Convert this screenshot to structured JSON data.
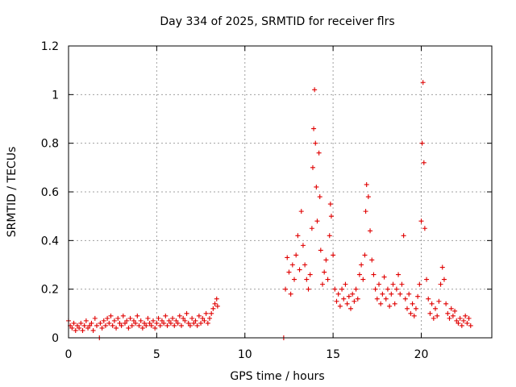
{
  "chart_data": {
    "type": "scatter",
    "title": "Day 334 of 2025, SRMTID for receiver flrs",
    "xlabel": "GPS time / hours",
    "ylabel": "SRMTID / TECUs",
    "xlim": [
      0,
      24
    ],
    "ylim": [
      0,
      1.2
    ],
    "xticks": [
      0,
      5,
      10,
      15,
      20
    ],
    "xtick_labels": [
      "0",
      "5",
      "10",
      "15",
      "20"
    ],
    "yticks": [
      0,
      0.2,
      0.4,
      0.6,
      0.8,
      1.0,
      1.2
    ],
    "ytick_labels": [
      "0",
      "0.2",
      "0.4",
      "0.6",
      "0.8",
      "1",
      "1.2"
    ],
    "grid": true,
    "marker": "plus",
    "color": "#e00000",
    "series": [
      {
        "name": "SRMTID",
        "points": [
          [
            0.0,
            0.07
          ],
          [
            0.1,
            0.05
          ],
          [
            0.2,
            0.04
          ],
          [
            0.3,
            0.06
          ],
          [
            0.4,
            0.03
          ],
          [
            0.5,
            0.05
          ],
          [
            0.6,
            0.04
          ],
          [
            0.7,
            0.06
          ],
          [
            0.8,
            0.03
          ],
          [
            0.9,
            0.05
          ],
          [
            1.0,
            0.07
          ],
          [
            1.1,
            0.04
          ],
          [
            1.2,
            0.05
          ],
          [
            1.3,
            0.06
          ],
          [
            1.4,
            0.03
          ],
          [
            1.5,
            0.08
          ],
          [
            1.6,
            0.05
          ],
          [
            1.75,
            0.0
          ],
          [
            1.8,
            0.06
          ],
          [
            1.9,
            0.04
          ],
          [
            2.0,
            0.07
          ],
          [
            2.1,
            0.05
          ],
          [
            2.2,
            0.08
          ],
          [
            2.3,
            0.06
          ],
          [
            2.4,
            0.09
          ],
          [
            2.5,
            0.05
          ],
          [
            2.6,
            0.07
          ],
          [
            2.7,
            0.04
          ],
          [
            2.8,
            0.08
          ],
          [
            2.9,
            0.06
          ],
          [
            3.0,
            0.05
          ],
          [
            3.1,
            0.09
          ],
          [
            3.2,
            0.06
          ],
          [
            3.3,
            0.07
          ],
          [
            3.4,
            0.04
          ],
          [
            3.5,
            0.08
          ],
          [
            3.6,
            0.05
          ],
          [
            3.7,
            0.07
          ],
          [
            3.8,
            0.06
          ],
          [
            3.9,
            0.09
          ],
          [
            4.0,
            0.05
          ],
          [
            4.1,
            0.07
          ],
          [
            4.2,
            0.04
          ],
          [
            4.3,
            0.06
          ],
          [
            4.4,
            0.05
          ],
          [
            4.5,
            0.08
          ],
          [
            4.6,
            0.06
          ],
          [
            4.7,
            0.05
          ],
          [
            4.8,
            0.07
          ],
          [
            4.9,
            0.04
          ],
          [
            5.0,
            0.06
          ],
          [
            5.1,
            0.08
          ],
          [
            5.2,
            0.05
          ],
          [
            5.3,
            0.07
          ],
          [
            5.4,
            0.06
          ],
          [
            5.5,
            0.09
          ],
          [
            5.6,
            0.05
          ],
          [
            5.7,
            0.07
          ],
          [
            5.8,
            0.06
          ],
          [
            5.9,
            0.08
          ],
          [
            6.0,
            0.05
          ],
          [
            6.1,
            0.07
          ],
          [
            6.2,
            0.06
          ],
          [
            6.3,
            0.09
          ],
          [
            6.4,
            0.05
          ],
          [
            6.5,
            0.08
          ],
          [
            6.6,
            0.07
          ],
          [
            6.7,
            0.1
          ],
          [
            6.8,
            0.06
          ],
          [
            6.9,
            0.05
          ],
          [
            7.0,
            0.08
          ],
          [
            7.1,
            0.06
          ],
          [
            7.2,
            0.07
          ],
          [
            7.3,
            0.05
          ],
          [
            7.4,
            0.09
          ],
          [
            7.5,
            0.06
          ],
          [
            7.6,
            0.08
          ],
          [
            7.7,
            0.07
          ],
          [
            7.8,
            0.1
          ],
          [
            7.9,
            0.06
          ],
          [
            8.0,
            0.08
          ],
          [
            8.1,
            0.1
          ],
          [
            8.2,
            0.12
          ],
          [
            8.3,
            0.14
          ],
          [
            8.4,
            0.16
          ],
          [
            8.45,
            0.13
          ],
          [
            12.2,
            0.0
          ],
          [
            12.3,
            0.2
          ],
          [
            12.4,
            0.33
          ],
          [
            12.5,
            0.27
          ],
          [
            12.6,
            0.18
          ],
          [
            12.7,
            0.3
          ],
          [
            12.8,
            0.24
          ],
          [
            12.9,
            0.34
          ],
          [
            13.0,
            0.42
          ],
          [
            13.1,
            0.28
          ],
          [
            13.2,
            0.52
          ],
          [
            13.3,
            0.38
          ],
          [
            13.4,
            0.3
          ],
          [
            13.5,
            0.24
          ],
          [
            13.6,
            0.2
          ],
          [
            13.7,
            0.26
          ],
          [
            13.8,
            0.45
          ],
          [
            13.85,
            0.7
          ],
          [
            13.9,
            0.86
          ],
          [
            13.95,
            1.02
          ],
          [
            14.0,
            0.8
          ],
          [
            14.05,
            0.62
          ],
          [
            14.1,
            0.48
          ],
          [
            14.2,
            0.76
          ],
          [
            14.25,
            0.58
          ],
          [
            14.3,
            0.36
          ],
          [
            14.4,
            0.22
          ],
          [
            14.5,
            0.27
          ],
          [
            14.6,
            0.32
          ],
          [
            14.7,
            0.24
          ],
          [
            14.8,
            0.42
          ],
          [
            14.85,
            0.55
          ],
          [
            14.9,
            0.5
          ],
          [
            15.0,
            0.34
          ],
          [
            15.1,
            0.2
          ],
          [
            15.2,
            0.15
          ],
          [
            15.3,
            0.18
          ],
          [
            15.4,
            0.13
          ],
          [
            15.5,
            0.2
          ],
          [
            15.6,
            0.16
          ],
          [
            15.7,
            0.22
          ],
          [
            15.8,
            0.14
          ],
          [
            15.9,
            0.17
          ],
          [
            16.0,
            0.12
          ],
          [
            16.1,
            0.18
          ],
          [
            16.2,
            0.15
          ],
          [
            16.3,
            0.2
          ],
          [
            16.4,
            0.16
          ],
          [
            16.5,
            0.26
          ],
          [
            16.6,
            0.3
          ],
          [
            16.7,
            0.24
          ],
          [
            16.8,
            0.34
          ],
          [
            16.85,
            0.52
          ],
          [
            16.9,
            0.63
          ],
          [
            17.0,
            0.58
          ],
          [
            17.1,
            0.44
          ],
          [
            17.2,
            0.32
          ],
          [
            17.3,
            0.26
          ],
          [
            17.4,
            0.2
          ],
          [
            17.5,
            0.16
          ],
          [
            17.6,
            0.22
          ],
          [
            17.7,
            0.14
          ],
          [
            17.8,
            0.18
          ],
          [
            17.9,
            0.25
          ],
          [
            18.0,
            0.16
          ],
          [
            18.1,
            0.2
          ],
          [
            18.2,
            0.13
          ],
          [
            18.3,
            0.18
          ],
          [
            18.4,
            0.22
          ],
          [
            18.5,
            0.14
          ],
          [
            18.6,
            0.2
          ],
          [
            18.7,
            0.26
          ],
          [
            18.8,
            0.18
          ],
          [
            18.9,
            0.22
          ],
          [
            19.0,
            0.42
          ],
          [
            19.1,
            0.16
          ],
          [
            19.2,
            0.12
          ],
          [
            19.3,
            0.18
          ],
          [
            19.4,
            0.1
          ],
          [
            19.5,
            0.14
          ],
          [
            19.6,
            0.09
          ],
          [
            19.7,
            0.12
          ],
          [
            19.8,
            0.17
          ],
          [
            19.9,
            0.22
          ],
          [
            20.0,
            0.48
          ],
          [
            20.05,
            0.8
          ],
          [
            20.1,
            1.05
          ],
          [
            20.15,
            0.72
          ],
          [
            20.2,
            0.45
          ],
          [
            20.3,
            0.24
          ],
          [
            20.4,
            0.16
          ],
          [
            20.5,
            0.1
          ],
          [
            20.6,
            0.14
          ],
          [
            20.7,
            0.08
          ],
          [
            20.8,
            0.12
          ],
          [
            20.9,
            0.09
          ],
          [
            21.0,
            0.15
          ],
          [
            21.1,
            0.22
          ],
          [
            21.2,
            0.29
          ],
          [
            21.3,
            0.24
          ],
          [
            21.4,
            0.14
          ],
          [
            21.5,
            0.1
          ],
          [
            21.6,
            0.08
          ],
          [
            21.7,
            0.12
          ],
          [
            21.8,
            0.09
          ],
          [
            21.9,
            0.11
          ],
          [
            22.0,
            0.07
          ],
          [
            22.1,
            0.06
          ],
          [
            22.2,
            0.08
          ],
          [
            22.3,
            0.05
          ],
          [
            22.4,
            0.07
          ],
          [
            22.5,
            0.09
          ],
          [
            22.6,
            0.06
          ],
          [
            22.7,
            0.08
          ],
          [
            22.8,
            0.05
          ]
        ]
      }
    ]
  }
}
